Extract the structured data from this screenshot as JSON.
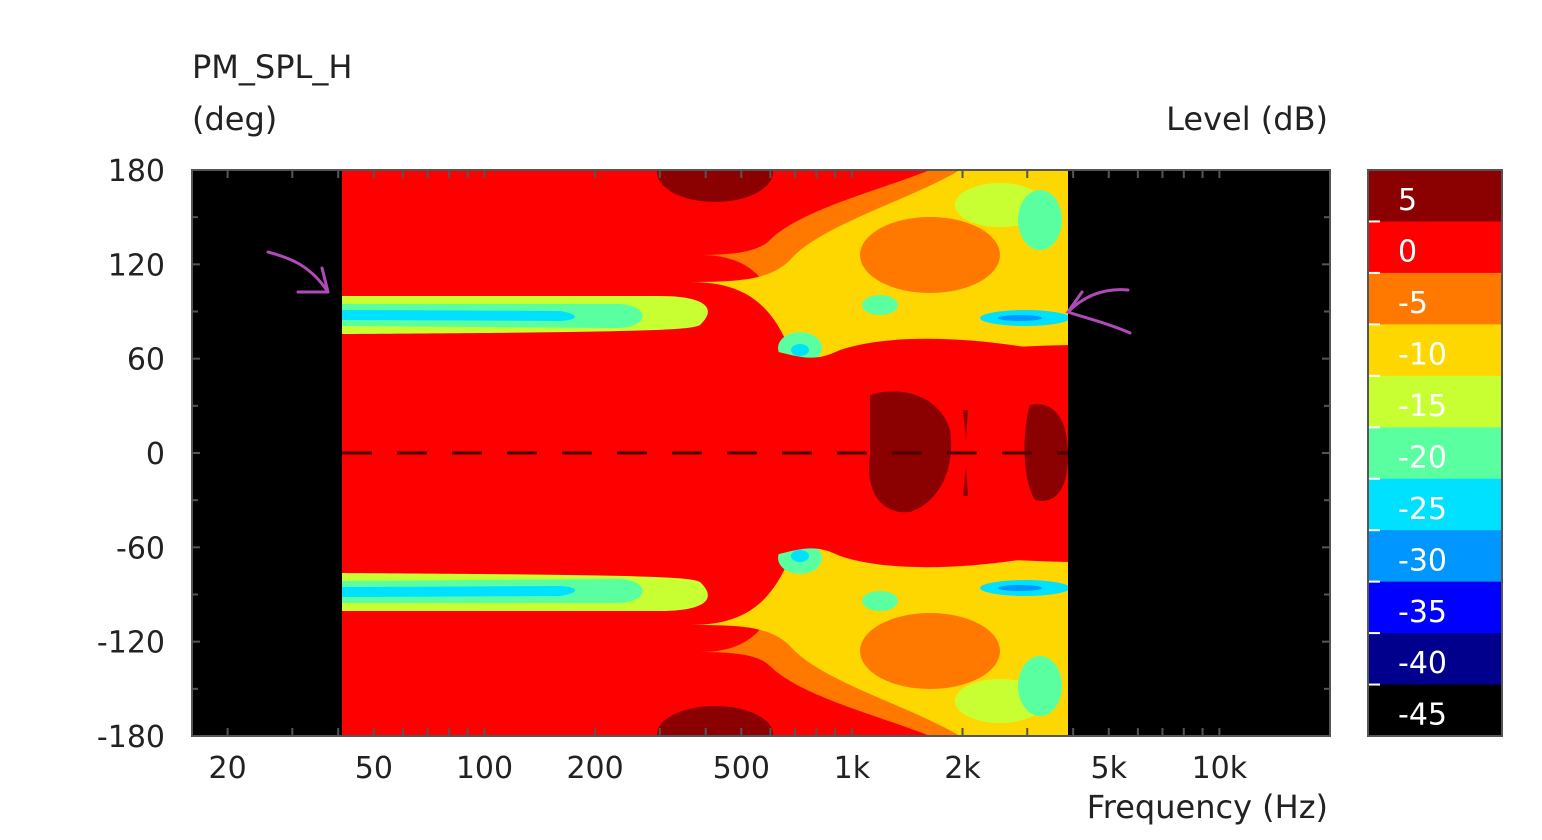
{
  "chart_data": {
    "type": "heatmap",
    "title": "PM_SPL_H",
    "ylabel": "(deg)",
    "xlabel": "Frequency  (Hz)",
    "colorbar_label": "Level  (dB)",
    "x_scale": "log",
    "xlim": [
      16,
      20000
    ],
    "ylim": [
      -180,
      180
    ],
    "data_extent_hz": [
      45,
      3900
    ],
    "x_ticks": [
      {
        "value": 20,
        "label": "20"
      },
      {
        "value": 50,
        "label": "50"
      },
      {
        "value": 100,
        "label": "100"
      },
      {
        "value": 200,
        "label": "200"
      },
      {
        "value": 500,
        "label": "500"
      },
      {
        "value": 1000,
        "label": "1k"
      },
      {
        "value": 2000,
        "label": "2k"
      },
      {
        "value": 5000,
        "label": "5k"
      },
      {
        "value": 10000,
        "label": "10k"
      }
    ],
    "y_ticks": [
      {
        "value": 180,
        "label": "180"
      },
      {
        "value": 120,
        "label": "120"
      },
      {
        "value": 60,
        "label": "60"
      },
      {
        "value": 0,
        "label": "0"
      },
      {
        "value": -60,
        "label": "-60"
      },
      {
        "value": -120,
        "label": "-120"
      },
      {
        "value": -180,
        "label": "-180"
      }
    ],
    "color_scale": [
      {
        "level": 5,
        "label": "5",
        "color": "#8b0000"
      },
      {
        "level": 0,
        "label": "0",
        "color": "#ff0000"
      },
      {
        "level": -5,
        "label": "-5",
        "color": "#ff7800"
      },
      {
        "level": -10,
        "label": "-10",
        "color": "#ffd700"
      },
      {
        "level": -15,
        "label": "-15",
        "color": "#c8ff32"
      },
      {
        "level": -20,
        "label": "-20",
        "color": "#5affa0"
      },
      {
        "level": -25,
        "label": "-25",
        "color": "#00e1ff"
      },
      {
        "level": -30,
        "label": "-30",
        "color": "#0096ff"
      },
      {
        "level": -35,
        "label": "-35",
        "color": "#0000ff"
      },
      {
        "level": -40,
        "label": "-40",
        "color": "#00008c"
      },
      {
        "level": -45,
        "label": "-45",
        "color": "#000000"
      }
    ],
    "grid": false
  }
}
